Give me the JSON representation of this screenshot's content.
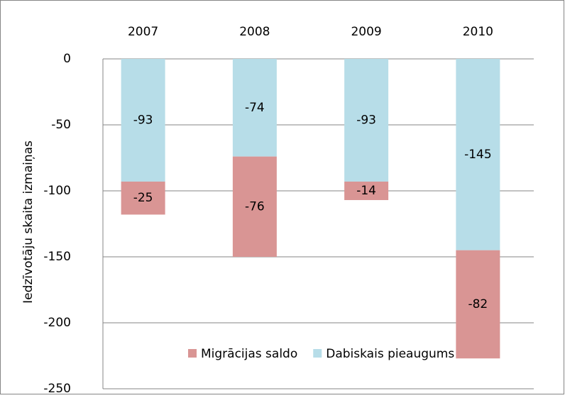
{
  "chart_data": {
    "type": "stacked_bar",
    "y_label": "Iedzīvotāju skaita izmaiņas",
    "categories": [
      "2007",
      "2008",
      "2009",
      "2010"
    ],
    "series": [
      {
        "name": "Dabiskais pieaugums",
        "color": "#b7dde8",
        "values": [
          -93,
          -74,
          -93,
          -145
        ]
      },
      {
        "name": "Migrācijas saldo",
        "color": "#d99594",
        "values": [
          -25,
          -76,
          -14,
          -82
        ]
      }
    ],
    "ylim": [
      -250,
      0
    ],
    "yticks": [
      0,
      -50,
      -100,
      -150,
      -200,
      -250
    ],
    "grid": true,
    "legend": "bottom"
  }
}
